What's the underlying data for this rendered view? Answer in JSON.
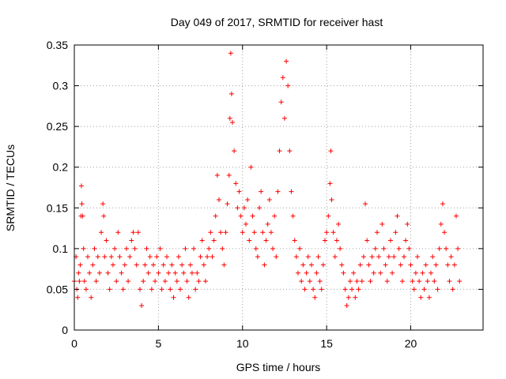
{
  "chart_data": {
    "type": "scatter",
    "title": "Day 049 of 2017, SRMTID for receiver hast",
    "xlabel": "GPS time / hours",
    "ylabel": "SRMTID / TECUs",
    "xlim": [
      0,
      24.3
    ],
    "ylim": [
      0,
      0.35
    ],
    "xticks": [
      0,
      5,
      10,
      15,
      20
    ],
    "xtick_labels": [
      "0",
      "5",
      "10",
      "15",
      "20"
    ],
    "yticks": [
      0,
      0.05,
      0.1,
      0.15,
      0.2,
      0.25,
      0.3,
      0.35
    ],
    "ytick_labels": [
      "0",
      "0.05",
      "0.1",
      "0.15",
      "0.2",
      "0.25",
      "0.3",
      "0.35"
    ],
    "grid": true,
    "marker": "plus",
    "color": "#ff0000",
    "series": [
      {
        "name": "SRMTID",
        "points": [
          [
            0.0,
            0.06
          ],
          [
            0.1,
            0.09
          ],
          [
            0.15,
            0.05
          ],
          [
            0.2,
            0.04
          ],
          [
            0.25,
            0.07
          ],
          [
            0.3,
            0.06
          ],
          [
            0.35,
            0.08
          ],
          [
            0.4,
            0.14
          ],
          [
            0.42,
            0.177
          ],
          [
            0.45,
            0.155
          ],
          [
            0.5,
            0.14
          ],
          [
            0.55,
            0.1
          ],
          [
            0.6,
            0.06
          ],
          [
            0.7,
            0.05
          ],
          [
            0.8,
            0.09
          ],
          [
            0.9,
            0.07
          ],
          [
            1.0,
            0.04
          ],
          [
            1.1,
            0.08
          ],
          [
            1.2,
            0.1
          ],
          [
            1.3,
            0.06
          ],
          [
            1.4,
            0.09
          ],
          [
            1.5,
            0.07
          ],
          [
            1.6,
            0.12
          ],
          [
            1.7,
            0.155
          ],
          [
            1.75,
            0.14
          ],
          [
            1.8,
            0.09
          ],
          [
            1.9,
            0.11
          ],
          [
            2.0,
            0.07
          ],
          [
            2.1,
            0.05
          ],
          [
            2.2,
            0.09
          ],
          [
            2.3,
            0.08
          ],
          [
            2.4,
            0.1
          ],
          [
            2.5,
            0.06
          ],
          [
            2.6,
            0.12
          ],
          [
            2.7,
            0.09
          ],
          [
            2.8,
            0.07
          ],
          [
            2.9,
            0.05
          ],
          [
            3.0,
            0.08
          ],
          [
            3.1,
            0.1
          ],
          [
            3.2,
            0.06
          ],
          [
            3.3,
            0.09
          ],
          [
            3.4,
            0.11
          ],
          [
            3.5,
            0.12
          ],
          [
            3.6,
            0.1
          ],
          [
            3.7,
            0.08
          ],
          [
            3.8,
            0.12
          ],
          [
            3.9,
            0.05
          ],
          [
            4.0,
            0.03
          ],
          [
            4.1,
            0.06
          ],
          [
            4.2,
            0.08
          ],
          [
            4.3,
            0.1
          ],
          [
            4.4,
            0.07
          ],
          [
            4.5,
            0.09
          ],
          [
            4.6,
            0.05
          ],
          [
            4.7,
            0.08
          ],
          [
            4.8,
            0.06
          ],
          [
            4.9,
            0.09
          ],
          [
            5.0,
            0.07
          ],
          [
            5.1,
            0.1
          ],
          [
            5.2,
            0.05
          ],
          [
            5.3,
            0.08
          ],
          [
            5.4,
            0.06
          ],
          [
            5.5,
            0.09
          ],
          [
            5.6,
            0.07
          ],
          [
            5.7,
            0.05
          ],
          [
            5.8,
            0.08
          ],
          [
            5.9,
            0.04
          ],
          [
            6.0,
            0.07
          ],
          [
            6.1,
            0.06
          ],
          [
            6.2,
            0.09
          ],
          [
            6.3,
            0.05
          ],
          [
            6.4,
            0.08
          ],
          [
            6.5,
            0.07
          ],
          [
            6.6,
            0.1
          ],
          [
            6.7,
            0.06
          ],
          [
            6.8,
            0.04
          ],
          [
            6.9,
            0.08
          ],
          [
            7.0,
            0.07
          ],
          [
            7.1,
            0.1
          ],
          [
            7.2,
            0.05
          ],
          [
            7.3,
            0.07
          ],
          [
            7.4,
            0.06
          ],
          [
            7.5,
            0.09
          ],
          [
            7.6,
            0.11
          ],
          [
            7.7,
            0.08
          ],
          [
            7.8,
            0.06
          ],
          [
            7.9,
            0.09
          ],
          [
            8.0,
            0.1
          ],
          [
            8.1,
            0.12
          ],
          [
            8.2,
            0.09
          ],
          [
            8.3,
            0.11
          ],
          [
            8.4,
            0.14
          ],
          [
            8.5,
            0.19
          ],
          [
            8.6,
            0.16
          ],
          [
            8.7,
            0.12
          ],
          [
            8.8,
            0.1
          ],
          [
            8.9,
            0.08
          ],
          [
            9.0,
            0.12
          ],
          [
            9.1,
            0.155
          ],
          [
            9.2,
            0.19
          ],
          [
            9.25,
            0.26
          ],
          [
            9.3,
            0.34
          ],
          [
            9.35,
            0.29
          ],
          [
            9.4,
            0.255
          ],
          [
            9.5,
            0.22
          ],
          [
            9.6,
            0.18
          ],
          [
            9.7,
            0.15
          ],
          [
            9.8,
            0.17
          ],
          [
            9.9,
            0.14
          ],
          [
            10.0,
            0.12
          ],
          [
            10.1,
            0.15
          ],
          [
            10.2,
            0.13
          ],
          [
            10.3,
            0.16
          ],
          [
            10.4,
            0.11
          ],
          [
            10.5,
            0.2
          ],
          [
            10.6,
            0.14
          ],
          [
            10.7,
            0.12
          ],
          [
            10.8,
            0.1
          ],
          [
            10.9,
            0.09
          ],
          [
            11.0,
            0.15
          ],
          [
            11.1,
            0.17
          ],
          [
            11.2,
            0.12
          ],
          [
            11.3,
            0.08
          ],
          [
            11.4,
            0.11
          ],
          [
            11.5,
            0.13
          ],
          [
            11.6,
            0.16
          ],
          [
            11.7,
            0.12
          ],
          [
            11.8,
            0.1
          ],
          [
            11.9,
            0.14
          ],
          [
            12.0,
            0.09
          ],
          [
            12.1,
            0.17
          ],
          [
            12.2,
            0.22
          ],
          [
            12.3,
            0.28
          ],
          [
            12.4,
            0.31
          ],
          [
            12.5,
            0.26
          ],
          [
            12.6,
            0.33
          ],
          [
            12.7,
            0.3
          ],
          [
            12.8,
            0.22
          ],
          [
            12.9,
            0.17
          ],
          [
            13.0,
            0.14
          ],
          [
            13.1,
            0.11
          ],
          [
            13.2,
            0.09
          ],
          [
            13.3,
            0.07
          ],
          [
            13.4,
            0.1
          ],
          [
            13.5,
            0.06
          ],
          [
            13.6,
            0.08
          ],
          [
            13.7,
            0.05
          ],
          [
            13.8,
            0.07
          ],
          [
            13.9,
            0.09
          ],
          [
            14.0,
            0.06
          ],
          [
            14.1,
            0.08
          ],
          [
            14.2,
            0.05
          ],
          [
            14.3,
            0.04
          ],
          [
            14.4,
            0.07
          ],
          [
            14.5,
            0.09
          ],
          [
            14.6,
            0.06
          ],
          [
            14.7,
            0.05
          ],
          [
            14.8,
            0.08
          ],
          [
            14.9,
            0.11
          ],
          [
            15.0,
            0.12
          ],
          [
            15.1,
            0.14
          ],
          [
            15.2,
            0.18
          ],
          [
            15.25,
            0.22
          ],
          [
            15.3,
            0.16
          ],
          [
            15.4,
            0.12
          ],
          [
            15.5,
            0.09
          ],
          [
            15.6,
            0.11
          ],
          [
            15.7,
            0.13
          ],
          [
            15.8,
            0.1
          ],
          [
            15.9,
            0.08
          ],
          [
            16.0,
            0.07
          ],
          [
            16.1,
            0.05
          ],
          [
            16.2,
            0.03
          ],
          [
            16.3,
            0.04
          ],
          [
            16.4,
            0.06
          ],
          [
            16.5,
            0.05
          ],
          [
            16.6,
            0.07
          ],
          [
            16.7,
            0.04
          ],
          [
            16.8,
            0.06
          ],
          [
            16.9,
            0.05
          ],
          [
            17.0,
            0.08
          ],
          [
            17.1,
            0.06
          ],
          [
            17.2,
            0.09
          ],
          [
            17.3,
            0.155
          ],
          [
            17.4,
            0.11
          ],
          [
            17.5,
            0.08
          ],
          [
            17.6,
            0.06
          ],
          [
            17.7,
            0.09
          ],
          [
            17.8,
            0.07
          ],
          [
            17.9,
            0.1
          ],
          [
            18.0,
            0.12
          ],
          [
            18.1,
            0.09
          ],
          [
            18.2,
            0.07
          ],
          [
            18.3,
            0.13
          ],
          [
            18.4,
            0.1
          ],
          [
            18.5,
            0.08
          ],
          [
            18.6,
            0.06
          ],
          [
            18.7,
            0.09
          ],
          [
            18.8,
            0.11
          ],
          [
            18.9,
            0.07
          ],
          [
            19.0,
            0.09
          ],
          [
            19.1,
            0.12
          ],
          [
            19.2,
            0.14
          ],
          [
            19.3,
            0.1
          ],
          [
            19.4,
            0.08
          ],
          [
            19.5,
            0.06
          ],
          [
            19.6,
            0.09
          ],
          [
            19.7,
            0.11
          ],
          [
            19.8,
            0.13
          ],
          [
            19.9,
            0.1
          ],
          [
            20.0,
            0.08
          ],
          [
            20.1,
            0.06
          ],
          [
            20.2,
            0.05
          ],
          [
            20.3,
            0.07
          ],
          [
            20.4,
            0.09
          ],
          [
            20.5,
            0.06
          ],
          [
            20.6,
            0.04
          ],
          [
            20.7,
            0.07
          ],
          [
            20.8,
            0.05
          ],
          [
            20.9,
            0.08
          ],
          [
            21.0,
            0.06
          ],
          [
            21.1,
            0.04
          ],
          [
            21.2,
            0.07
          ],
          [
            21.3,
            0.09
          ],
          [
            21.4,
            0.06
          ],
          [
            21.5,
            0.08
          ],
          [
            21.6,
            0.05
          ],
          [
            21.7,
            0.1
          ],
          [
            21.8,
            0.13
          ],
          [
            21.9,
            0.155
          ],
          [
            22.0,
            0.12
          ],
          [
            22.1,
            0.1
          ],
          [
            22.2,
            0.08
          ],
          [
            22.3,
            0.06
          ],
          [
            22.4,
            0.09
          ],
          [
            22.5,
            0.05
          ],
          [
            22.6,
            0.08
          ],
          [
            22.7,
            0.14
          ],
          [
            22.8,
            0.1
          ],
          [
            22.9,
            0.06
          ]
        ]
      }
    ]
  }
}
